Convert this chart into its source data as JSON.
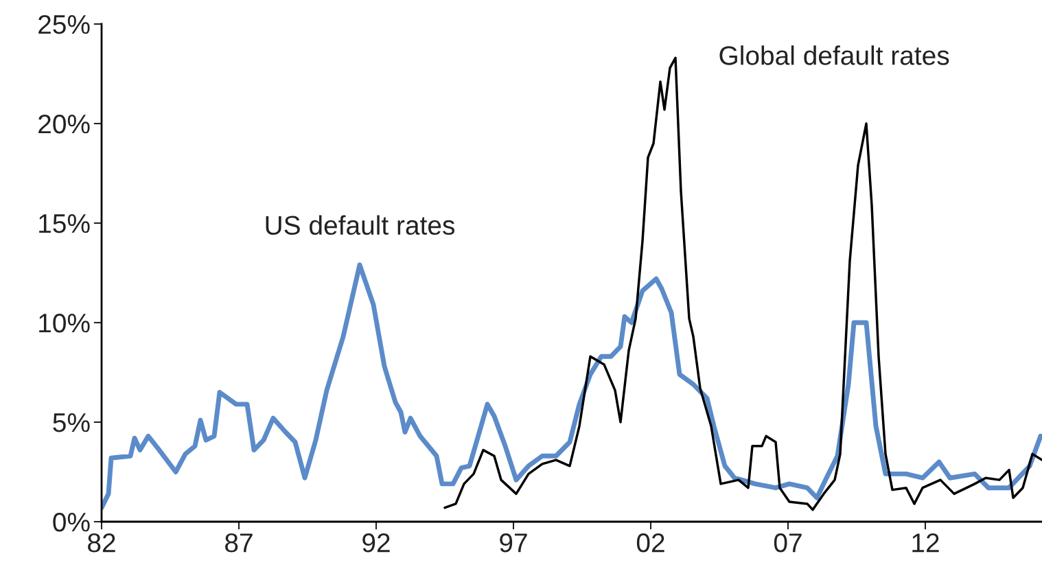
{
  "chart_data": {
    "type": "line",
    "xlim": [
      1982,
      2016.25
    ],
    "ylim": [
      0,
      25
    ],
    "xticks": [
      {
        "value": 1982,
        "label": "82"
      },
      {
        "value": 1987,
        "label": "87"
      },
      {
        "value": 1992,
        "label": "92"
      },
      {
        "value": 1997,
        "label": "97"
      },
      {
        "value": 2002,
        "label": "02"
      },
      {
        "value": 2007,
        "label": "07"
      },
      {
        "value": 2012,
        "label": "12"
      }
    ],
    "yticks": [
      {
        "value": 0,
        "label": "0%"
      },
      {
        "value": 5,
        "label": "5%"
      },
      {
        "value": 10,
        "label": "10%"
      },
      {
        "value": 15,
        "label": "15%"
      },
      {
        "value": 20,
        "label": "20%"
      },
      {
        "value": 25,
        "label": "25%"
      }
    ],
    "grid": false,
    "legend": false,
    "marker": "none",
    "line_style": "solid",
    "series": [
      {
        "name": "US default rates",
        "color": "#5b8bc9",
        "x": [
          1982.0,
          1982.25,
          1982.35,
          1983.05,
          1983.2,
          1983.4,
          1983.7,
          1984.1,
          1984.7,
          1985.05,
          1985.4,
          1985.6,
          1985.8,
          1986.1,
          1986.3,
          1986.9,
          1987.3,
          1987.55,
          1987.9,
          1988.25,
          1988.7,
          1989.05,
          1989.4,
          1989.8,
          1990.2,
          1990.8,
          1991.2,
          1991.4,
          1991.9,
          1992.3,
          1992.7,
          1992.9,
          1993.05,
          1993.25,
          1993.6,
          1993.9,
          1994.2,
          1994.4,
          1994.8,
          1995.1,
          1995.4,
          1995.8,
          1996.05,
          1996.3,
          1996.7,
          1997.1,
          1997.55,
          1998.05,
          1998.55,
          1999.05,
          1999.4,
          1999.8,
          2000.2,
          2000.55,
          2000.9,
          2001.05,
          2001.3,
          2001.7,
          2002.2,
          2002.4,
          2002.75,
          2003.05,
          2003.55,
          2004.05,
          2004.3,
          2004.7,
          2005.05,
          2005.8,
          2006.55,
          2007.05,
          2007.7,
          2008.05,
          2008.4,
          2008.8,
          2009.2,
          2009.4,
          2009.85,
          2010.2,
          2010.55,
          2011.3,
          2011.9,
          2012.5,
          2012.9,
          2013.8,
          2014.3,
          2015.05,
          2015.8,
          2016.2
        ],
        "values": [
          0.7,
          1.4,
          3.2,
          3.3,
          4.2,
          3.6,
          4.3,
          3.6,
          2.5,
          3.4,
          3.8,
          5.1,
          4.1,
          4.3,
          6.5,
          5.9,
          5.9,
          3.6,
          4.1,
          5.2,
          4.5,
          4.0,
          2.2,
          4.1,
          6.6,
          9.3,
          11.7,
          12.9,
          10.9,
          7.8,
          6.0,
          5.5,
          4.5,
          5.2,
          4.3,
          3.8,
          3.3,
          1.9,
          1.9,
          2.7,
          2.8,
          4.7,
          5.9,
          5.3,
          3.8,
          2.1,
          2.8,
          3.3,
          3.3,
          4.0,
          5.9,
          7.4,
          8.3,
          8.3,
          8.8,
          10.3,
          10.0,
          11.6,
          12.2,
          11.7,
          10.5,
          7.4,
          6.9,
          6.2,
          4.8,
          2.8,
          2.2,
          1.9,
          1.7,
          1.9,
          1.7,
          1.2,
          2.2,
          3.3,
          6.9,
          10.0,
          10.0,
          4.8,
          2.4,
          2.4,
          2.2,
          3.0,
          2.2,
          2.4,
          1.7,
          1.7,
          2.8,
          4.3
        ]
      },
      {
        "name": "Global default rates",
        "color": "#000000",
        "x": [
          1994.5,
          1994.9,
          1995.2,
          1995.55,
          1995.9,
          1996.3,
          1996.55,
          1997.1,
          1997.55,
          1998.05,
          1998.55,
          1999.05,
          1999.4,
          1999.8,
          2000.3,
          2000.7,
          2000.9,
          2001.2,
          2001.45,
          2001.7,
          2001.9,
          2002.1,
          2002.35,
          2002.5,
          2002.7,
          2002.9,
          2003.1,
          2003.4,
          2003.55,
          2003.8,
          2004.2,
          2004.55,
          2005.2,
          2005.55,
          2005.7,
          2006.05,
          2006.2,
          2006.55,
          2006.7,
          2007.05,
          2007.7,
          2007.9,
          2008.3,
          2008.7,
          2008.9,
          2009.25,
          2009.55,
          2009.85,
          2010.05,
          2010.3,
          2010.55,
          2010.8,
          2011.3,
          2011.6,
          2011.9,
          2012.55,
          2013.05,
          2013.8,
          2014.2,
          2014.7,
          2015.05,
          2015.2,
          2015.55,
          2015.9,
          2016.25
        ],
        "values": [
          0.7,
          0.9,
          1.9,
          2.4,
          3.6,
          3.3,
          2.1,
          1.4,
          2.4,
          2.9,
          3.1,
          2.8,
          4.8,
          8.3,
          7.9,
          6.6,
          5.0,
          8.6,
          10.2,
          14.1,
          18.3,
          19.0,
          22.1,
          20.7,
          22.8,
          23.3,
          16.6,
          10.2,
          9.3,
          6.7,
          4.8,
          1.9,
          2.1,
          1.7,
          3.8,
          3.8,
          4.3,
          4.0,
          1.7,
          1.0,
          0.9,
          0.6,
          1.4,
          2.1,
          3.4,
          13.1,
          17.9,
          20.0,
          15.9,
          8.3,
          3.4,
          1.6,
          1.7,
          0.9,
          1.7,
          2.1,
          1.4,
          1.9,
          2.2,
          2.1,
          2.6,
          1.2,
          1.7,
          3.4,
          3.1
        ]
      }
    ]
  }
}
